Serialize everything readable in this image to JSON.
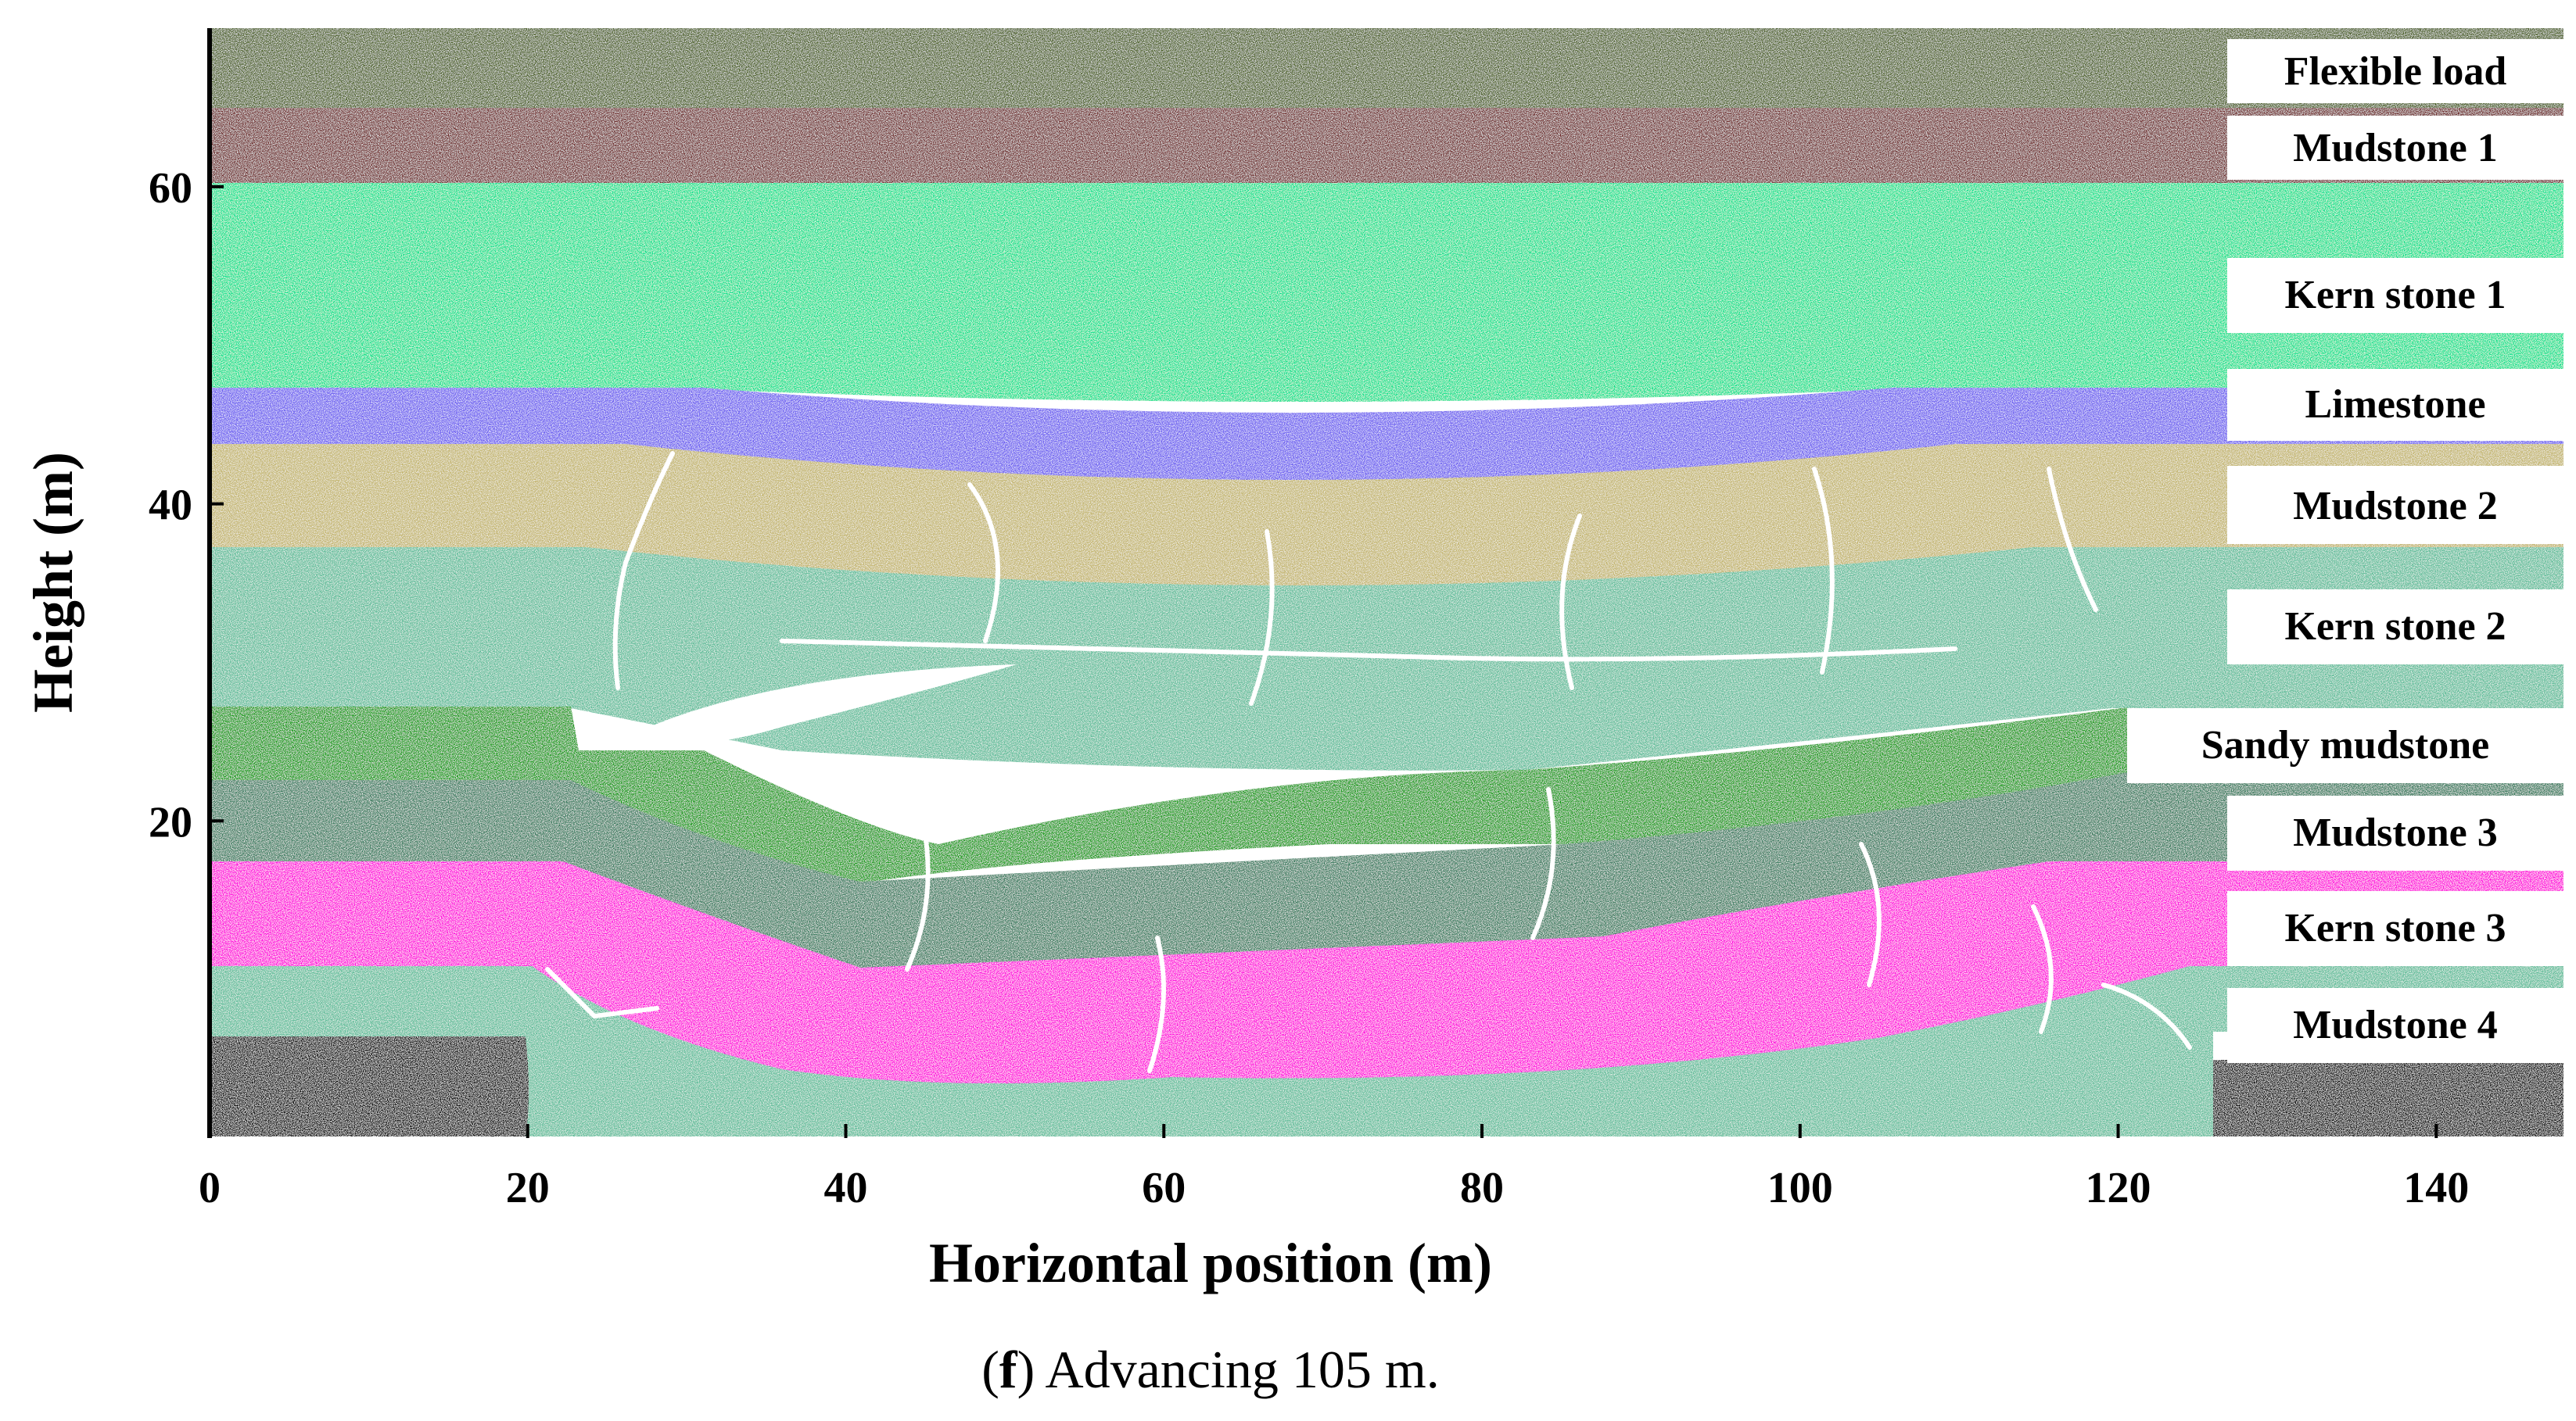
{
  "figure": {
    "caption_letter": "f",
    "caption_text": " Advancing 105 m.",
    "x_axis": {
      "title": "Horizontal position (m)",
      "range": [
        0,
        148
      ],
      "ticks": [
        "0",
        "20",
        "40",
        "60",
        "80",
        "100",
        "120",
        "140"
      ]
    },
    "y_axis": {
      "title": "Height (m)",
      "range": [
        0,
        70
      ],
      "ticks": [
        "20",
        "40",
        "60"
      ]
    },
    "layers": [
      {
        "id": "flexible-load",
        "label": "Flexible load",
        "color": "#4a5e23"
      },
      {
        "id": "mudstone-1",
        "label": "Mudstone 1",
        "color": "#6e2a2a"
      },
      {
        "id": "kern-stone-1",
        "label": "Kern stone 1",
        "color": "#00e08a"
      },
      {
        "id": "limestone",
        "label": "Limestone",
        "color": "#6a5cf0"
      },
      {
        "id": "mudstone-2",
        "label": "Mudstone 2",
        "color": "#c2b46a"
      },
      {
        "id": "kern-stone-2",
        "label": "Kern stone 2",
        "color": "#5bbc98"
      },
      {
        "id": "sandy-mudstone",
        "label": "Sandy mudstone",
        "color": "#0a9a0a"
      },
      {
        "id": "mudstone-3",
        "label": "Mudstone 3",
        "color": "#347a5c"
      },
      {
        "id": "kern-stone-3",
        "label": "Kern stone 3",
        "color": "#ff00dc"
      },
      {
        "id": "mudstone-4",
        "label": "Mudstone 4",
        "color": "#5bbc98"
      },
      {
        "id": "coal-base",
        "label": "",
        "color": "#000000"
      }
    ]
  }
}
